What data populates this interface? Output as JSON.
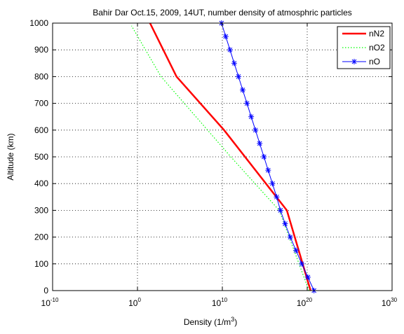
{
  "chart_data": {
    "type": "line",
    "title": "Bahir Dar Oct.15, 2009, 14UT, number density of atmosphric particles",
    "xlabel": {
      "base": "Density (1/m",
      "exp": "3",
      "tail": ")"
    },
    "ylabel": "Altitude (km)",
    "xscale": "log",
    "xlim_exponents": [
      -10,
      30
    ],
    "ylim": [
      0,
      1000
    ],
    "x_ticks": [
      {
        "base": "10",
        "exp": "-10"
      },
      {
        "base": "10",
        "exp": "0"
      },
      {
        "base": "10",
        "exp": "10"
      },
      {
        "base": "10",
        "exp": "20"
      },
      {
        "base": "10",
        "exp": "30"
      }
    ],
    "x_tick_exponents": [
      -10,
      0,
      10,
      20,
      30
    ],
    "y_ticks": [
      "0",
      "100",
      "200",
      "300",
      "400",
      "500",
      "600",
      "700",
      "800",
      "900",
      "1000"
    ],
    "y_tick_values": [
      0,
      100,
      200,
      300,
      400,
      500,
      600,
      700,
      800,
      900,
      1000
    ],
    "grid": "dotted",
    "legend_position": "top-right",
    "colors": {
      "nN2": "#ff0000",
      "nO2": "#00ff00",
      "nO": "#0000ff"
    },
    "series": [
      {
        "name": "nN2",
        "style": "solid",
        "marker": "none",
        "points": [
          {
            "x": 2.5e+20,
            "y": 0
          },
          {
            "x": 4e+17,
            "y": 300
          },
          {
            "x": 16000000000.0,
            "y": 600
          },
          {
            "x": 40000.0,
            "y": 800
          },
          {
            "x": 30.0,
            "y": 1000
          }
        ]
      },
      {
        "name": "nO2",
        "style": "dotted",
        "marker": "none",
        "points": [
          {
            "x": 1.6e+20,
            "y": 0
          },
          {
            "x": 5e+16,
            "y": 300
          },
          {
            "x": 100000000000.0,
            "y": 500
          },
          {
            "x": 600.0,
            "y": 800
          },
          {
            "x": 0.2,
            "y": 990
          }
        ]
      },
      {
        "name": "nO",
        "style": "solid",
        "marker": "asterisk",
        "points": [
          {
            "x": 6.3e+20,
            "y": 0
          },
          {
            "x": 1.2e+20,
            "y": 50
          },
          {
            "x": 2.3e+19,
            "y": 100
          },
          {
            "x": 4.8e+18,
            "y": 150
          },
          {
            "x": 1e+18,
            "y": 200
          },
          {
            "x": 2.5e+17,
            "y": 250
          },
          {
            "x": 7e+16,
            "y": 300
          },
          {
            "x": 2.5e+16,
            "y": 350
          },
          {
            "x": 8000000000000000.0,
            "y": 400
          },
          {
            "x": 2500000000000000.0,
            "y": 450
          },
          {
            "x": 800000000000000.0,
            "y": 500
          },
          {
            "x": 250000000000000.0,
            "y": 550
          },
          {
            "x": 80000000000000.0,
            "y": 600
          },
          {
            "x": 25000000000000.0,
            "y": 650
          },
          {
            "x": 8000000000000.0,
            "y": 700
          },
          {
            "x": 2500000000000.0,
            "y": 750
          },
          {
            "x": 800000000000.0,
            "y": 800
          },
          {
            "x": 250000000000.0,
            "y": 850
          },
          {
            "x": 80000000000.0,
            "y": 900
          },
          {
            "x": 25000000000.0,
            "y": 950
          },
          {
            "x": 8000000000.0,
            "y": 1000
          }
        ]
      }
    ]
  }
}
